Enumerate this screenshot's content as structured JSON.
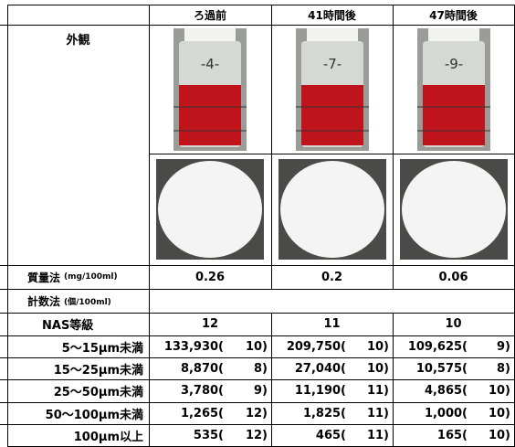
{
  "header": {
    "columns": [
      "ろ過前",
      "41時間後",
      "47時間後"
    ]
  },
  "appearance": {
    "label": "外観",
    "bottle_labels": [
      "-4-",
      "-7-",
      "-9-"
    ]
  },
  "mass": {
    "label": "質量法",
    "unit": "(mg/100ml)",
    "values": [
      "0.26",
      "0.2",
      "0.06"
    ]
  },
  "count": {
    "label": "計数法",
    "unit": "(個/100ml)"
  },
  "nas": {
    "label": "NAS等級",
    "values": [
      "12",
      "11",
      "10"
    ]
  },
  "sizes": [
    {
      "label": "5～15μm未満",
      "cells": [
        [
          "133,930(",
          "10)"
        ],
        [
          "209,750(",
          "10)"
        ],
        [
          "109,625(",
          "9)"
        ]
      ]
    },
    {
      "label": "15～25μm未満",
      "cells": [
        [
          "8,870(",
          "8)"
        ],
        [
          "27,040(",
          "10)"
        ],
        [
          "10,575(",
          "8)"
        ]
      ]
    },
    {
      "label": "25～50μm未満",
      "cells": [
        [
          "3,780(",
          "9)"
        ],
        [
          "11,190(",
          "11)"
        ],
        [
          "4,865(",
          "10)"
        ]
      ]
    },
    {
      "label": "50～100μm未満",
      "cells": [
        [
          "1,265(",
          "12)"
        ],
        [
          "1,825(",
          "11)"
        ],
        [
          "1,000(",
          "10)"
        ]
      ]
    },
    {
      "label": "100μm以上",
      "cells": [
        [
          "535(",
          "12)"
        ],
        [
          "465(",
          "11)"
        ],
        [
          "165(",
          "10)"
        ]
      ]
    }
  ]
}
